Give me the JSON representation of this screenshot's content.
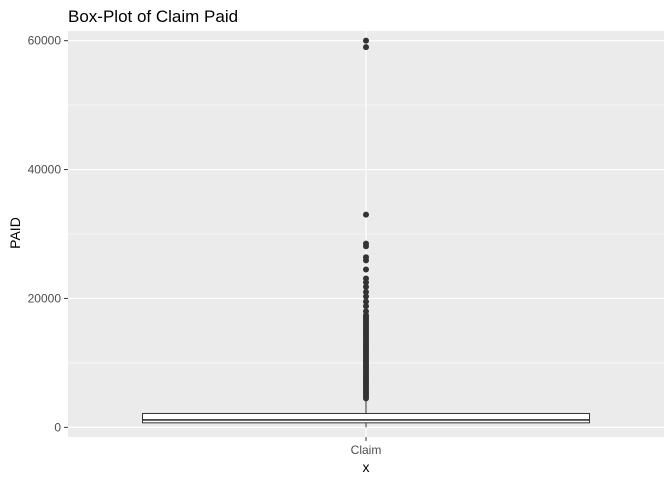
{
  "chart_data": {
    "type": "boxplot",
    "title": "Box-Plot of Claim Paid",
    "xlabel": "x",
    "ylabel": "PAID",
    "categories": [
      "Claim"
    ],
    "ylim": [
      -1500,
      61500
    ],
    "y_ticks": [
      0,
      20000,
      40000,
      60000
    ],
    "y_minor_ticks": [
      10000,
      30000,
      50000
    ],
    "y_tick_labels": [
      "0",
      "20000",
      "40000",
      "60000"
    ],
    "grid": true,
    "legend": "none",
    "box": {
      "category": "Claim",
      "min": 0,
      "q1": 700,
      "median": 1150,
      "q3": 2150,
      "whisker_low": 0,
      "whisker_high": 4350,
      "outliers": [
        4500,
        4800,
        5100,
        5400,
        5700,
        6000,
        6300,
        6600,
        6900,
        7200,
        7500,
        7800,
        8100,
        8400,
        8700,
        9000,
        9300,
        9600,
        9900,
        10200,
        10500,
        10800,
        11100,
        11400,
        11700,
        12000,
        12300,
        12600,
        12900,
        13200,
        13500,
        13800,
        14100,
        14400,
        14700,
        15000,
        15300,
        15600,
        15900,
        16200,
        16500,
        16800,
        17100,
        17400,
        18000,
        18800,
        19500,
        20300,
        21000,
        21800,
        22500,
        23100,
        24500,
        25900,
        26400,
        28100,
        28500,
        33000,
        59000,
        60000
      ]
    },
    "colors": {
      "panel": "#ebebeb",
      "grid": "#ffffff",
      "box_fill": "#ffffff",
      "box_line": "#333333",
      "outlier": "#333333",
      "tick_text": "#4d4d4d",
      "tick_mark": "#333333"
    }
  }
}
